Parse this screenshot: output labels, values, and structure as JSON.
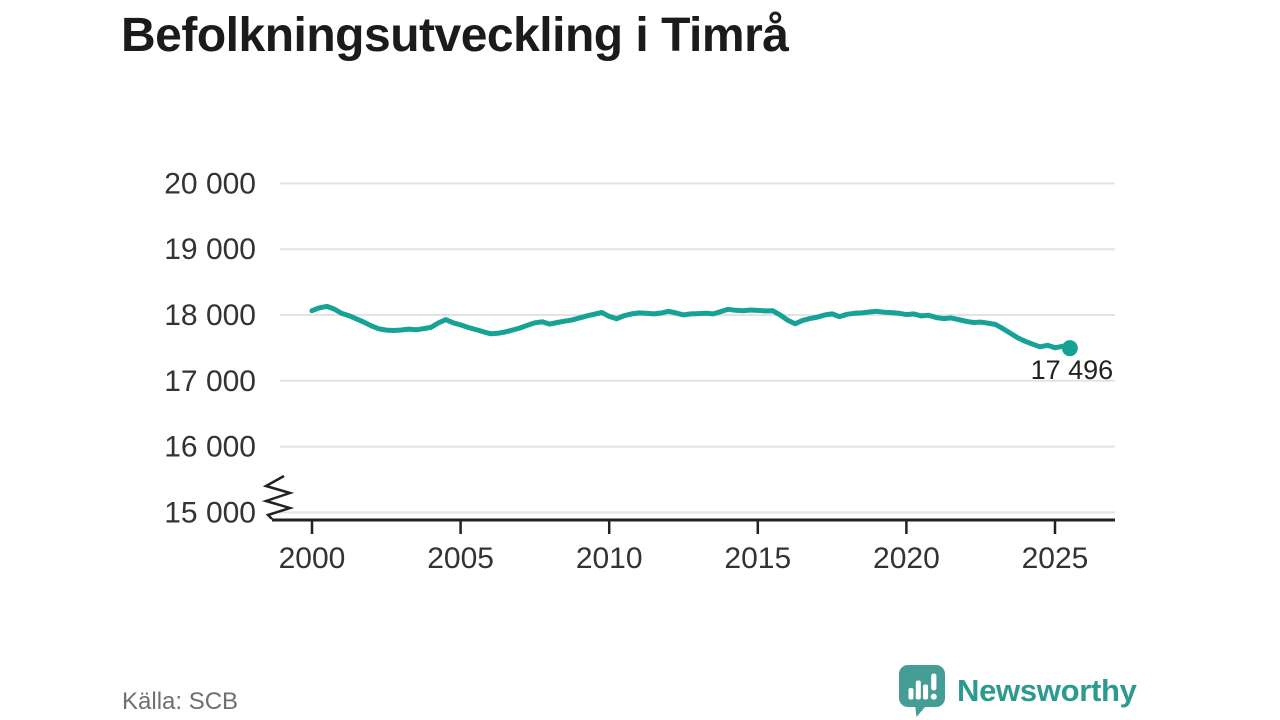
{
  "title": "Befolkningsutveckling i Timrå",
  "source": "Källa: SCB",
  "branding": {
    "logo_text": "Newsworthy",
    "logo_icon": "bar-chart-speech-bubble",
    "logo_color": "#2d9a90",
    "logo_icon_color": "#459d96"
  },
  "chart_data": {
    "type": "line",
    "title": "Befolkningsutveckling i Timrå",
    "xlabel": "",
    "ylabel": "",
    "grid": "horizontal",
    "legend": "none",
    "axis_break_at_bottom": true,
    "ylim": [
      15000,
      20000
    ],
    "xlim": [
      1999,
      2027
    ],
    "line_color": "#16a296",
    "grid_color": "#e3e3e3",
    "axis_color": "#222222",
    "tick_label_color": "#333333",
    "end_label": "17 496",
    "end_value": 17496,
    "y_ticks": [
      {
        "v": 15000,
        "label": "15 000"
      },
      {
        "v": 16000,
        "label": "16 000"
      },
      {
        "v": 17000,
        "label": "17 000"
      },
      {
        "v": 18000,
        "label": "18 000"
      },
      {
        "v": 19000,
        "label": "19 000"
      },
      {
        "v": 20000,
        "label": "20 000"
      }
    ],
    "x_ticks": [
      {
        "v": 2000,
        "label": "2000"
      },
      {
        "v": 2005,
        "label": "2005"
      },
      {
        "v": 2010,
        "label": "2010"
      },
      {
        "v": 2015,
        "label": "2015"
      },
      {
        "v": 2020,
        "label": "2020"
      },
      {
        "v": 2025,
        "label": "2025"
      }
    ],
    "series": [
      {
        "name": "Befolkning i Timrå",
        "points": [
          [
            2000.0,
            18065
          ],
          [
            2000.25,
            18110
          ],
          [
            2000.5,
            18130
          ],
          [
            2000.75,
            18090
          ],
          [
            2001.0,
            18025
          ],
          [
            2001.25,
            17990
          ],
          [
            2001.5,
            17940
          ],
          [
            2001.75,
            17890
          ],
          [
            2002.0,
            17835
          ],
          [
            2002.25,
            17790
          ],
          [
            2002.5,
            17770
          ],
          [
            2002.75,
            17765
          ],
          [
            2003.0,
            17772
          ],
          [
            2003.25,
            17786
          ],
          [
            2003.5,
            17775
          ],
          [
            2003.75,
            17792
          ],
          [
            2004.0,
            17812
          ],
          [
            2004.25,
            17878
          ],
          [
            2004.5,
            17930
          ],
          [
            2004.75,
            17882
          ],
          [
            2005.0,
            17850
          ],
          [
            2005.25,
            17812
          ],
          [
            2005.5,
            17780
          ],
          [
            2005.75,
            17748
          ],
          [
            2006.0,
            17716
          ],
          [
            2006.25,
            17722
          ],
          [
            2006.5,
            17742
          ],
          [
            2006.75,
            17772
          ],
          [
            2007.0,
            17802
          ],
          [
            2007.25,
            17845
          ],
          [
            2007.5,
            17882
          ],
          [
            2007.75,
            17896
          ],
          [
            2008.0,
            17862
          ],
          [
            2008.25,
            17886
          ],
          [
            2008.5,
            17906
          ],
          [
            2008.75,
            17926
          ],
          [
            2009.0,
            17956
          ],
          [
            2009.25,
            17986
          ],
          [
            2009.5,
            18012
          ],
          [
            2009.75,
            18040
          ],
          [
            2010.0,
            17978
          ],
          [
            2010.25,
            17942
          ],
          [
            2010.5,
            17990
          ],
          [
            2010.75,
            18016
          ],
          [
            2011.0,
            18032
          ],
          [
            2011.25,
            18026
          ],
          [
            2011.5,
            18016
          ],
          [
            2011.75,
            18030
          ],
          [
            2012.0,
            18056
          ],
          [
            2012.25,
            18030
          ],
          [
            2012.5,
            18002
          ],
          [
            2012.75,
            18016
          ],
          [
            2013.0,
            18022
          ],
          [
            2013.25,
            18026
          ],
          [
            2013.5,
            18016
          ],
          [
            2013.75,
            18050
          ],
          [
            2014.0,
            18086
          ],
          [
            2014.25,
            18072
          ],
          [
            2014.5,
            18066
          ],
          [
            2014.75,
            18076
          ],
          [
            2015.0,
            18070
          ],
          [
            2015.25,
            18062
          ],
          [
            2015.5,
            18066
          ],
          [
            2015.75,
            18002
          ],
          [
            2016.0,
            17922
          ],
          [
            2016.25,
            17866
          ],
          [
            2016.5,
            17916
          ],
          [
            2016.75,
            17946
          ],
          [
            2017.0,
            17966
          ],
          [
            2017.25,
            18000
          ],
          [
            2017.5,
            18016
          ],
          [
            2017.75,
            17976
          ],
          [
            2018.0,
            18010
          ],
          [
            2018.25,
            18026
          ],
          [
            2018.5,
            18032
          ],
          [
            2018.75,
            18046
          ],
          [
            2019.0,
            18056
          ],
          [
            2019.25,
            18042
          ],
          [
            2019.5,
            18036
          ],
          [
            2019.75,
            18026
          ],
          [
            2020.0,
            18006
          ],
          [
            2020.25,
            18016
          ],
          [
            2020.5,
            17986
          ],
          [
            2020.75,
            17996
          ],
          [
            2021.0,
            17962
          ],
          [
            2021.25,
            17946
          ],
          [
            2021.5,
            17956
          ],
          [
            2021.75,
            17930
          ],
          [
            2022.0,
            17906
          ],
          [
            2022.25,
            17886
          ],
          [
            2022.5,
            17892
          ],
          [
            2022.75,
            17876
          ],
          [
            2023.0,
            17856
          ],
          [
            2023.25,
            17792
          ],
          [
            2023.5,
            17722
          ],
          [
            2023.75,
            17652
          ],
          [
            2024.0,
            17600
          ],
          [
            2024.25,
            17556
          ],
          [
            2024.5,
            17516
          ],
          [
            2024.75,
            17540
          ],
          [
            2025.0,
            17502
          ],
          [
            2025.25,
            17524
          ],
          [
            2025.5,
            17496
          ]
        ]
      }
    ]
  }
}
